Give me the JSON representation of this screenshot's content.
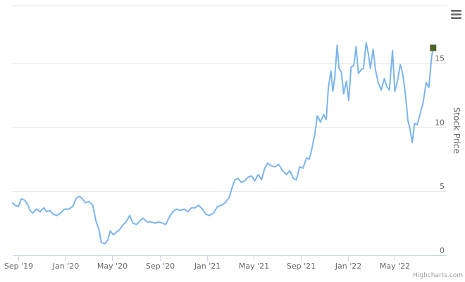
{
  "chart_data": {
    "type": "line",
    "title": "",
    "xlabel": "",
    "ylabel": "Stock Price",
    "ylim": [
      0,
      19.5
    ],
    "y_ticks": [
      0,
      5,
      10,
      15
    ],
    "x_range": [
      "2019-08-18",
      "2022-09-12"
    ],
    "x_ticks": [
      {
        "date": "2019-09-01",
        "label": "Sep '19"
      },
      {
        "date": "2020-01-01",
        "label": "Jan '20"
      },
      {
        "date": "2020-05-01",
        "label": "May '20"
      },
      {
        "date": "2020-09-01",
        "label": "Sep '20"
      },
      {
        "date": "2021-01-01",
        "label": "Jan '21"
      },
      {
        "date": "2021-05-01",
        "label": "May '21"
      },
      {
        "date": "2021-09-01",
        "label": "Sep '21"
      },
      {
        "date": "2022-01-01",
        "label": "Jan '22"
      },
      {
        "date": "2022-05-01",
        "label": "May '22"
      }
    ],
    "y_axis_side": "right",
    "grid": true,
    "legend": "none",
    "series": [
      {
        "color": "#7cb5ec",
        "points": [
          [
            "2019-08-18",
            4.1
          ],
          [
            "2019-08-24",
            3.9
          ],
          [
            "2019-09-02",
            3.8
          ],
          [
            "2019-09-09",
            4.4
          ],
          [
            "2019-09-18",
            4.3
          ],
          [
            "2019-09-25",
            4.0
          ],
          [
            "2019-10-02",
            3.5
          ],
          [
            "2019-10-09",
            3.3
          ],
          [
            "2019-10-18",
            3.6
          ],
          [
            "2019-10-28",
            3.4
          ],
          [
            "2019-11-06",
            3.7
          ],
          [
            "2019-11-14",
            3.4
          ],
          [
            "2019-11-22",
            3.5
          ],
          [
            "2019-12-01",
            3.2
          ],
          [
            "2019-12-10",
            3.1
          ],
          [
            "2019-12-20",
            3.3
          ],
          [
            "2019-12-30",
            3.6
          ],
          [
            "2020-01-10",
            3.6
          ],
          [
            "2020-01-20",
            3.8
          ],
          [
            "2020-01-30",
            4.5
          ],
          [
            "2020-02-07",
            4.6
          ],
          [
            "2020-02-14",
            4.4
          ],
          [
            "2020-02-22",
            4.1
          ],
          [
            "2020-03-02",
            4.2
          ],
          [
            "2020-03-12",
            3.9
          ],
          [
            "2020-03-20",
            2.7
          ],
          [
            "2020-03-28",
            2.0
          ],
          [
            "2020-04-03",
            1.0
          ],
          [
            "2020-04-12",
            0.9
          ],
          [
            "2020-04-20",
            1.2
          ],
          [
            "2020-04-26",
            1.9
          ],
          [
            "2020-05-04",
            1.6
          ],
          [
            "2020-05-12",
            1.8
          ],
          [
            "2020-05-20",
            2.0
          ],
          [
            "2020-05-30",
            2.4
          ],
          [
            "2020-06-08",
            2.7
          ],
          [
            "2020-06-15",
            3.1
          ],
          [
            "2020-06-24",
            2.5
          ],
          [
            "2020-07-03",
            2.4
          ],
          [
            "2020-07-12",
            2.7
          ],
          [
            "2020-07-20",
            2.9
          ],
          [
            "2020-07-30",
            2.6
          ],
          [
            "2020-08-09",
            2.6
          ],
          [
            "2020-08-20",
            2.5
          ],
          [
            "2020-08-30",
            2.6
          ],
          [
            "2020-09-08",
            2.5
          ],
          [
            "2020-09-16",
            2.4
          ],
          [
            "2020-09-26",
            3.0
          ],
          [
            "2020-10-05",
            3.4
          ],
          [
            "2020-10-14",
            3.6
          ],
          [
            "2020-10-24",
            3.5
          ],
          [
            "2020-11-03",
            3.6
          ],
          [
            "2020-11-13",
            3.4
          ],
          [
            "2020-11-22",
            3.7
          ],
          [
            "2020-12-01",
            3.7
          ],
          [
            "2020-12-10",
            3.9
          ],
          [
            "2020-12-20",
            3.6
          ],
          [
            "2020-12-29",
            3.2
          ],
          [
            "2021-01-08",
            3.1
          ],
          [
            "2021-01-18",
            3.3
          ],
          [
            "2021-01-28",
            3.8
          ],
          [
            "2021-02-07",
            3.9
          ],
          [
            "2021-02-17",
            4.1
          ],
          [
            "2021-02-27",
            4.5
          ],
          [
            "2021-03-07",
            5.3
          ],
          [
            "2021-03-14",
            5.9
          ],
          [
            "2021-03-22",
            6.0
          ],
          [
            "2021-03-30",
            5.7
          ],
          [
            "2021-04-08",
            5.8
          ],
          [
            "2021-04-17",
            6.1
          ],
          [
            "2021-04-26",
            6.2
          ],
          [
            "2021-05-04",
            5.8
          ],
          [
            "2021-05-13",
            6.3
          ],
          [
            "2021-05-22",
            5.9
          ],
          [
            "2021-05-30",
            6.8
          ],
          [
            "2021-06-07",
            7.2
          ],
          [
            "2021-06-15",
            7.0
          ],
          [
            "2021-06-25",
            6.9
          ],
          [
            "2021-07-05",
            7.1
          ],
          [
            "2021-07-15",
            6.6
          ],
          [
            "2021-07-25",
            6.3
          ],
          [
            "2021-08-03",
            6.6
          ],
          [
            "2021-08-12",
            6.0
          ],
          [
            "2021-08-20",
            5.9
          ],
          [
            "2021-08-28",
            6.9
          ],
          [
            "2021-09-06",
            6.8
          ],
          [
            "2021-09-15",
            7.6
          ],
          [
            "2021-09-22",
            7.5
          ],
          [
            "2021-09-28",
            8.2
          ],
          [
            "2021-10-06",
            9.4
          ],
          [
            "2021-10-13",
            10.9
          ],
          [
            "2021-10-21",
            10.4
          ],
          [
            "2021-10-29",
            11.0
          ],
          [
            "2021-11-05",
            10.6
          ],
          [
            "2021-11-10",
            13.0
          ],
          [
            "2021-11-17",
            14.4
          ],
          [
            "2021-11-22",
            12.8
          ],
          [
            "2021-11-27",
            13.9
          ],
          [
            "2021-12-03",
            16.4
          ],
          [
            "2021-12-08",
            14.6
          ],
          [
            "2021-12-14",
            14.3
          ],
          [
            "2021-12-20",
            12.6
          ],
          [
            "2021-12-27",
            13.6
          ],
          [
            "2022-01-02",
            12.1
          ],
          [
            "2022-01-08",
            14.7
          ],
          [
            "2022-01-15",
            14.8
          ],
          [
            "2022-01-21",
            16.3
          ],
          [
            "2022-01-27",
            14.2
          ],
          [
            "2022-02-03",
            14.5
          ],
          [
            "2022-02-09",
            14.6
          ],
          [
            "2022-02-16",
            16.6
          ],
          [
            "2022-02-22",
            15.7
          ],
          [
            "2022-02-27",
            14.6
          ],
          [
            "2022-03-06",
            16.1
          ],
          [
            "2022-03-12",
            14.5
          ],
          [
            "2022-03-19",
            13.5
          ],
          [
            "2022-03-27",
            12.9
          ],
          [
            "2022-04-04",
            13.8
          ],
          [
            "2022-04-10",
            13.2
          ],
          [
            "2022-04-17",
            12.9
          ],
          [
            "2022-04-25",
            16.0
          ],
          [
            "2022-05-01",
            12.8
          ],
          [
            "2022-05-08",
            13.6
          ],
          [
            "2022-05-15",
            14.9
          ],
          [
            "2022-05-22",
            14.1
          ],
          [
            "2022-05-29",
            12.4
          ],
          [
            "2022-06-04",
            10.5
          ],
          [
            "2022-06-09",
            9.9
          ],
          [
            "2022-06-15",
            8.8
          ],
          [
            "2022-06-21",
            10.3
          ],
          [
            "2022-06-28",
            10.2
          ],
          [
            "2022-07-06",
            11.1
          ],
          [
            "2022-07-13",
            11.9
          ],
          [
            "2022-07-21",
            13.5
          ],
          [
            "2022-07-28",
            13.1
          ],
          [
            "2022-08-04",
            15.5
          ],
          [
            "2022-08-08",
            16.2
          ]
        ],
        "last_point": [
          "2022-08-08",
          16.2
        ],
        "last_point_marker_color": "#4f6228"
      }
    ]
  },
  "credits": "Highcharts.com",
  "menu_icon": "hamburger-menu-icon"
}
